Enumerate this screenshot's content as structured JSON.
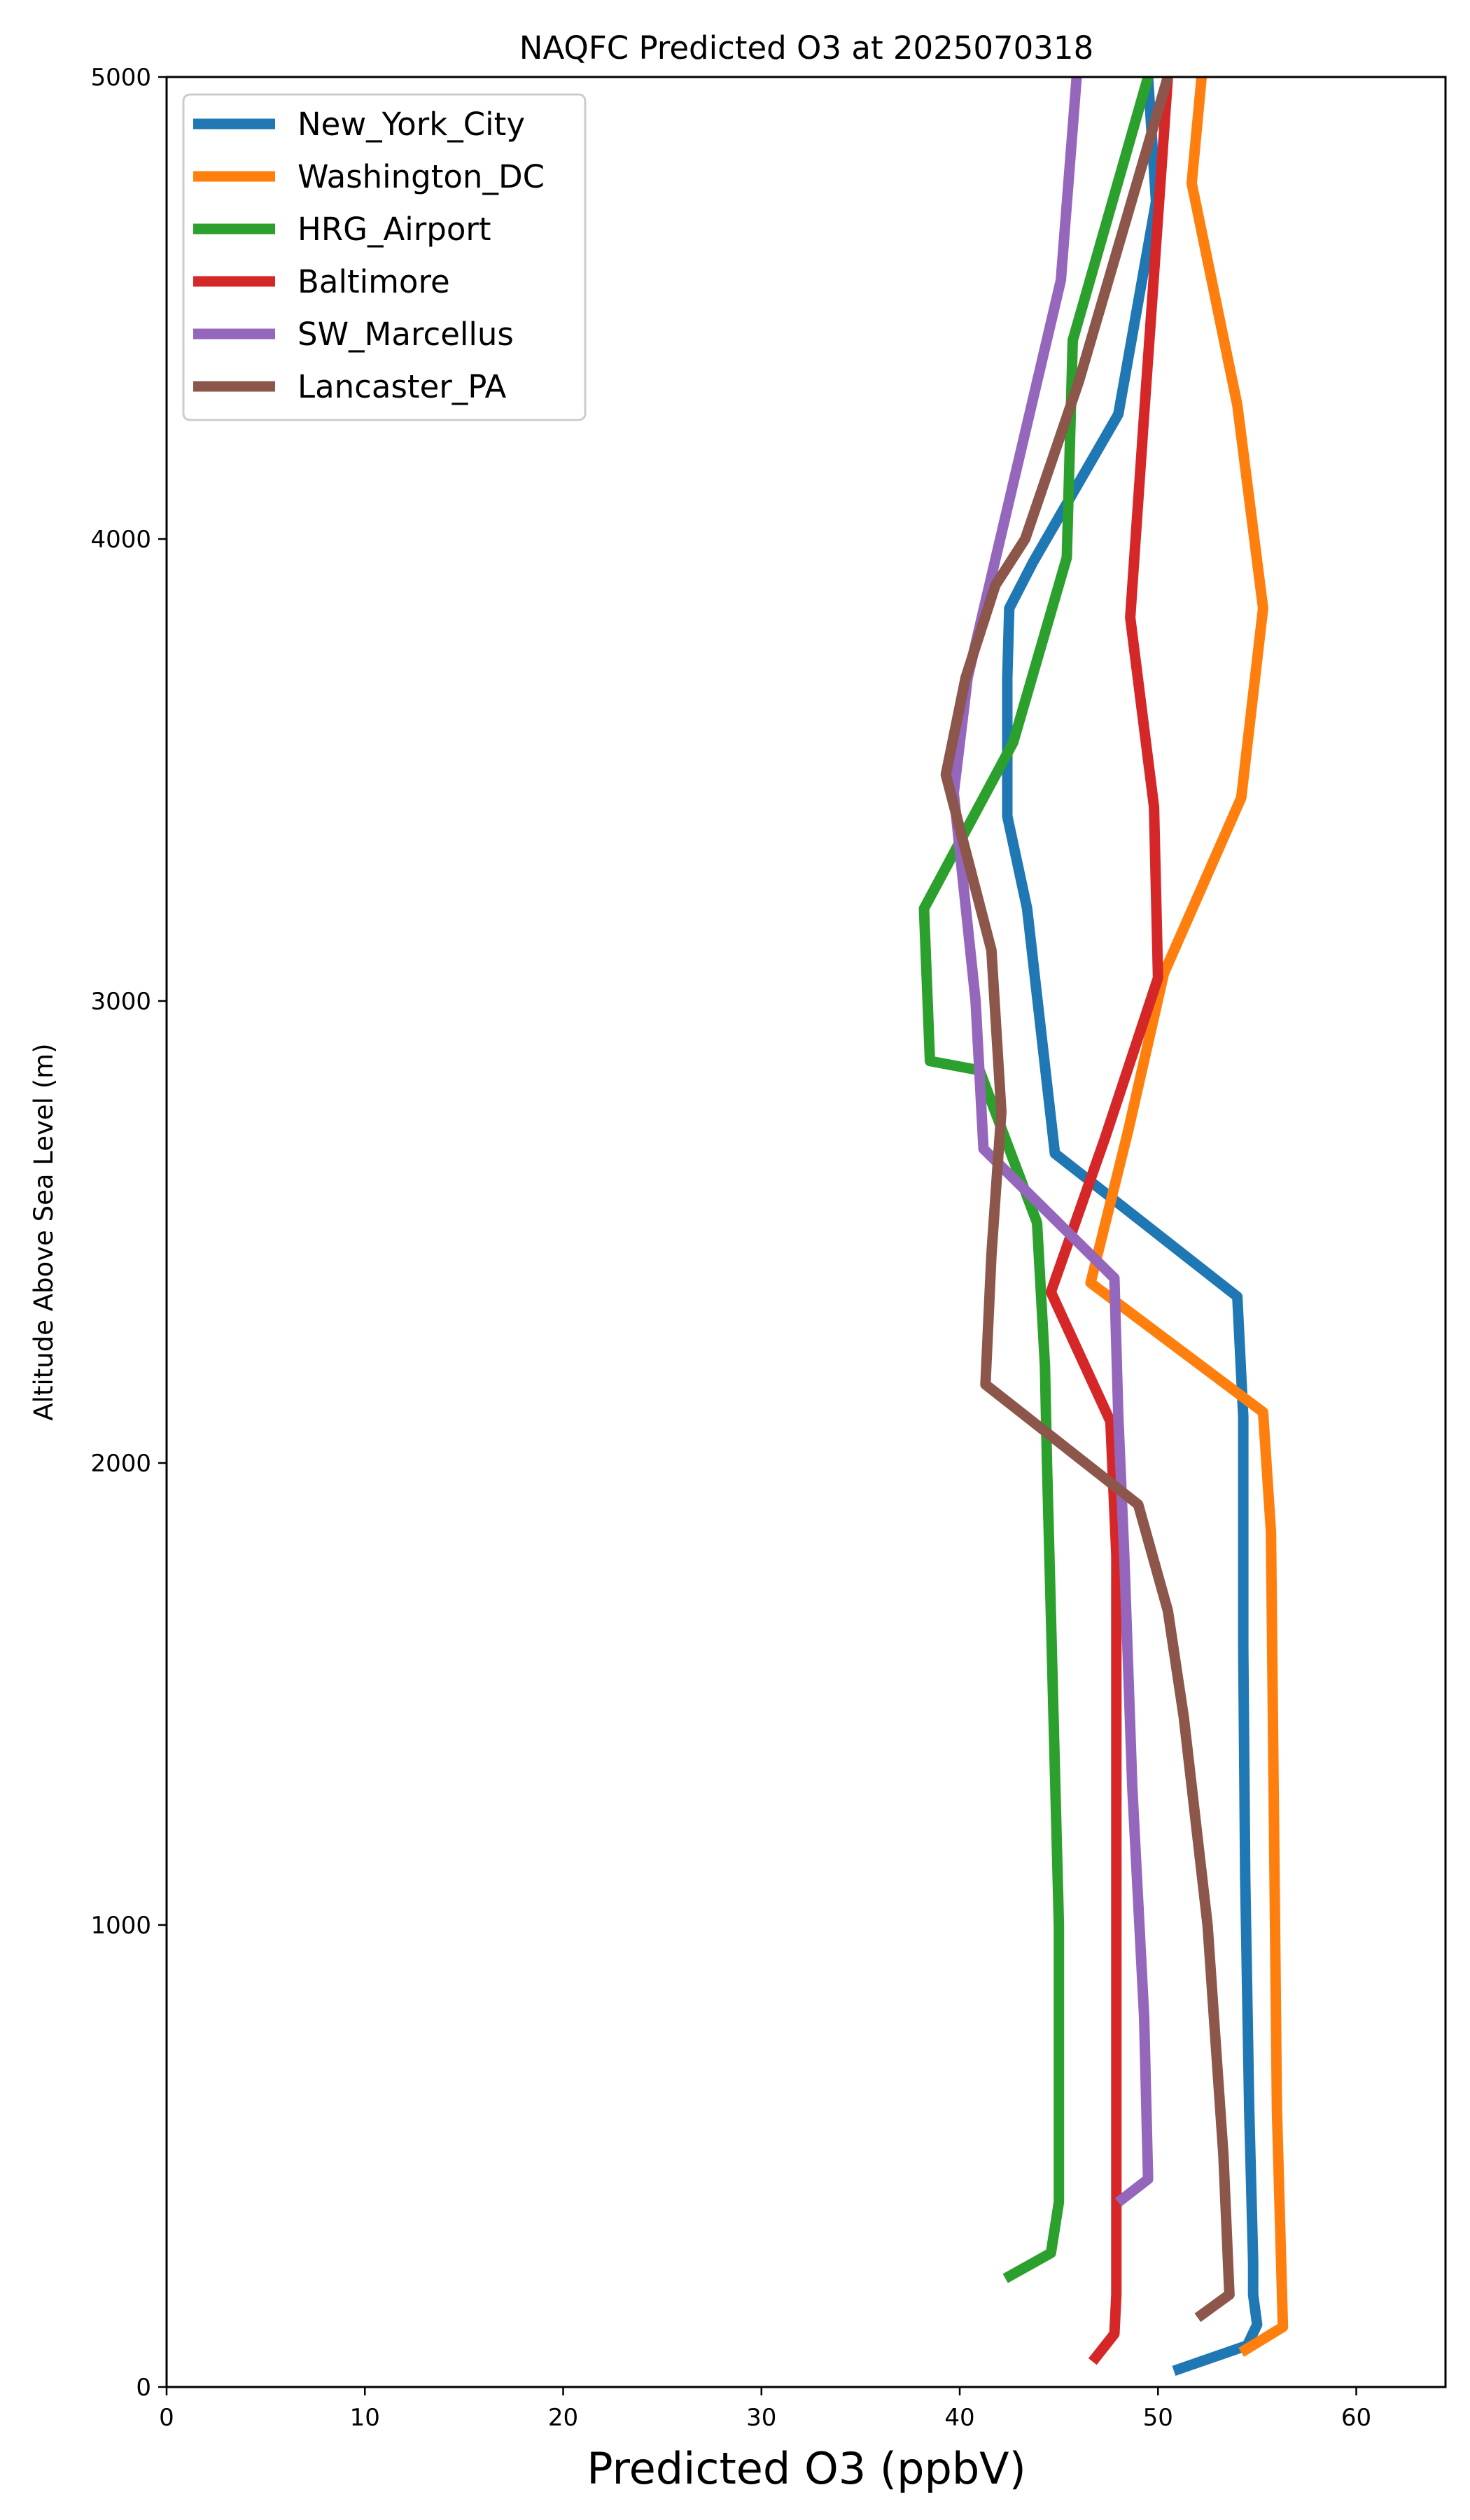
{
  "chart_data": {
    "type": "line",
    "title": "NAQFC Predicted O3 at 2025070318",
    "xlabel": "Predicted O3 (ppbV)",
    "ylabel": "Altitude Above Sea Level (m)",
    "xlim": [
      0,
      64.5
    ],
    "ylim": [
      0,
      5000
    ],
    "xticks": [
      0,
      10,
      20,
      30,
      40,
      50,
      60
    ],
    "yticks": [
      0,
      1000,
      2000,
      3000,
      4000,
      5000
    ],
    "grid": false,
    "legend_position": "top-left",
    "series": [
      {
        "name": "New_York_City",
        "color": "#1f77b4",
        "x": [
          50.8,
          54.5,
          55.0,
          54.8,
          54.8,
          54.6,
          54.4,
          54.3,
          54.3,
          54.0,
          44.8,
          43.9,
          43.4,
          42.4,
          42.4,
          42.5,
          43.7,
          48.0,
          49.9,
          49.5
        ],
        "y": [
          35,
          90,
          135,
          200,
          270,
          600,
          1100,
          1600,
          2100,
          2360,
          2670,
          3010,
          3200,
          3400,
          3700,
          3850,
          3950,
          4270,
          4730,
          5000
        ]
      },
      {
        "name": "Washington_DC",
        "color": "#ff7f0e",
        "x": [
          54.2,
          56.3,
          56.0,
          55.7,
          55.3,
          46.6,
          48.5,
          50.3,
          54.2,
          55.3,
          54.0,
          51.7,
          52.2
        ],
        "y": [
          75,
          130,
          600,
          1850,
          2110,
          2390,
          2720,
          3060,
          3440,
          3850,
          4290,
          4770,
          5000
        ]
      },
      {
        "name": "HRG_Airport",
        "color": "#2ca02c",
        "x": [
          42.3,
          44.6,
          45.0,
          45.0,
          44.4,
          44.3,
          43.9,
          41.0,
          38.5,
          38.2,
          42.7,
          45.4,
          45.7,
          49.5
        ],
        "y": [
          235,
          290,
          400,
          1000,
          2000,
          2210,
          2520,
          2850,
          2870,
          3200,
          3560,
          3960,
          4430,
          5000
        ]
      },
      {
        "name": "Baltimore",
        "color": "#d62728",
        "x": [
          46.7,
          47.8,
          47.9,
          47.9,
          47.9,
          47.6,
          44.6,
          47.3,
          50.0,
          49.8,
          48.6,
          49.3,
          50.5
        ],
        "y": [
          55,
          115,
          200,
          1000,
          1800,
          2090,
          2370,
          2700,
          3050,
          3420,
          3830,
          4270,
          5000
        ]
      },
      {
        "name": "SW_Marcellus",
        "color": "#9467bd",
        "x": [
          48.0,
          49.5,
          49.3,
          48.7,
          48.3,
          48.0,
          47.8,
          41.2,
          40.8,
          39.7,
          40.4,
          45.1,
          45.9
        ],
        "y": [
          400,
          450,
          800,
          1300,
          1800,
          2100,
          2400,
          2680,
          3000,
          3450,
          3700,
          4560,
          5000
        ]
      },
      {
        "name": "Lancaster_PA",
        "color": "#8c564b",
        "x": [
          52.0,
          53.6,
          53.3,
          52.5,
          51.3,
          50.5,
          49.0,
          41.3,
          41.6,
          42.1,
          41.6,
          39.3,
          40.3,
          41.8,
          43.3,
          46.0,
          50.5
        ],
        "y": [
          150,
          200,
          500,
          1000,
          1450,
          1680,
          1910,
          2170,
          2450,
          2760,
          3110,
          3490,
          3700,
          3900,
          4000,
          4340,
          5000
        ]
      }
    ]
  }
}
